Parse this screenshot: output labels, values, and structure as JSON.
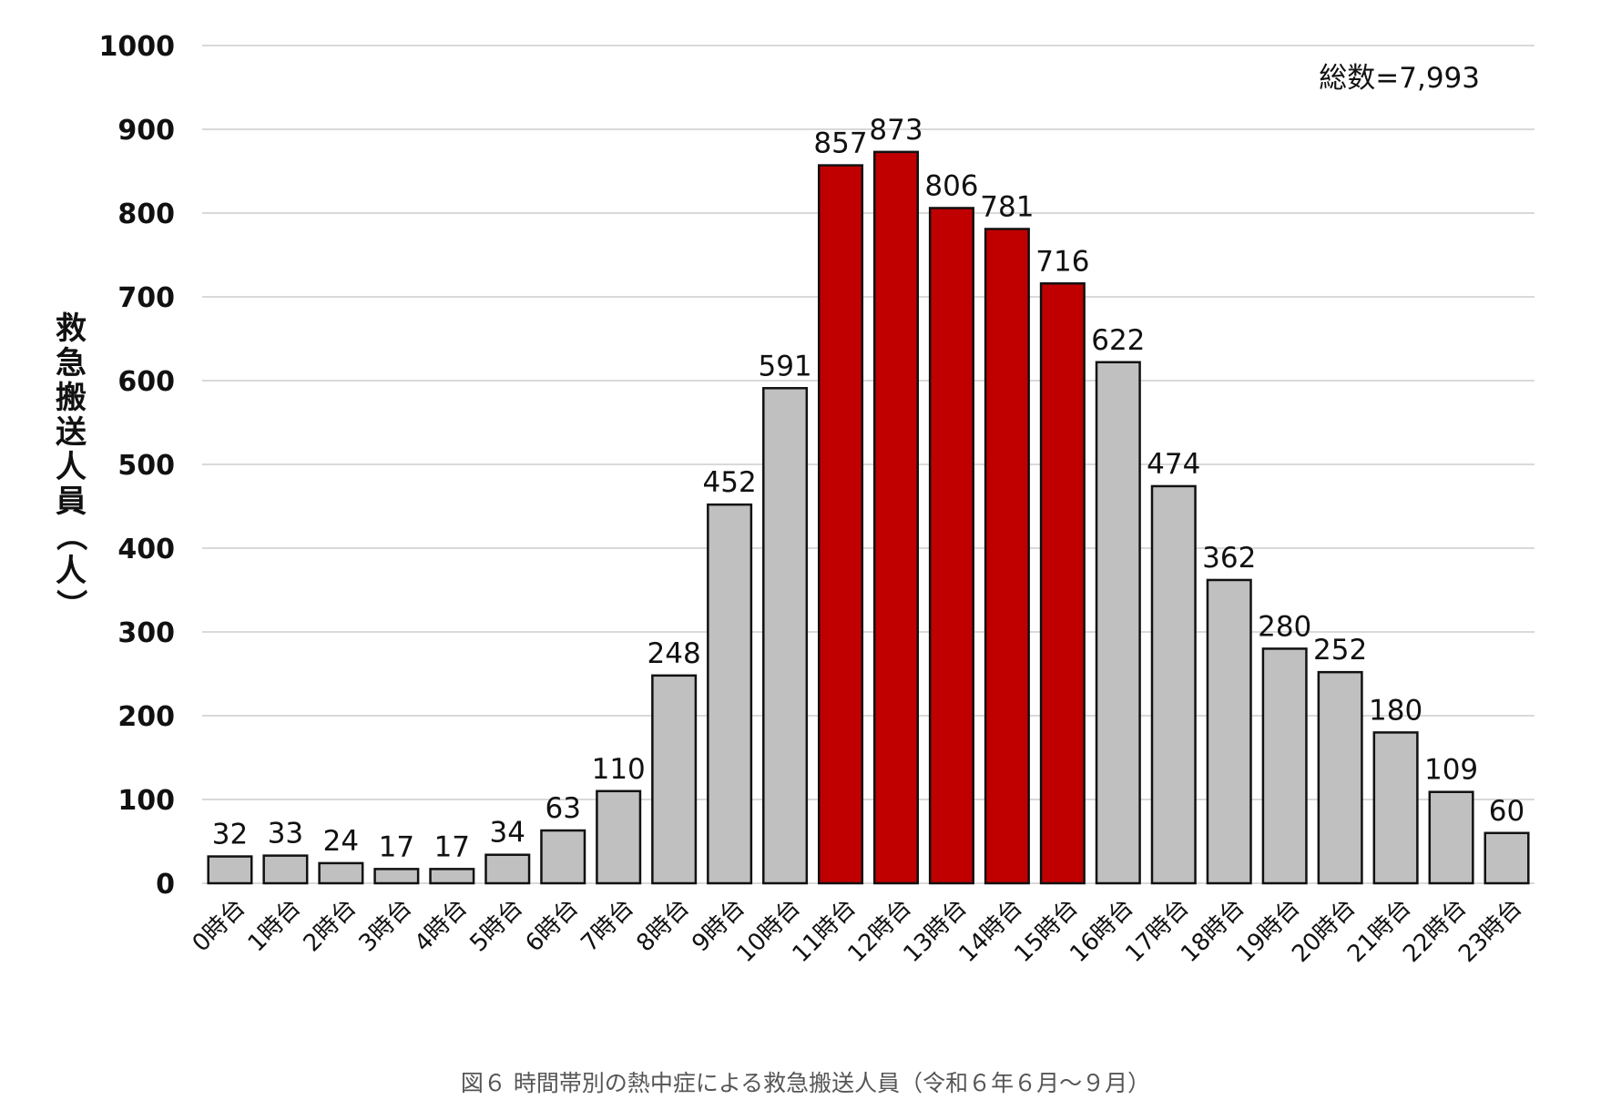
{
  "chart_data": {
    "type": "bar",
    "categories": [
      "0時台",
      "1時台",
      "2時台",
      "3時台",
      "4時台",
      "5時台",
      "6時台",
      "7時台",
      "8時台",
      "9時台",
      "10時台",
      "11時台",
      "12時台",
      "13時台",
      "14時台",
      "15時台",
      "16時台",
      "17時台",
      "18時台",
      "19時台",
      "20時台",
      "21時台",
      "22時台",
      "23時台"
    ],
    "values": [
      32,
      33,
      24,
      17,
      17,
      34,
      63,
      110,
      248,
      452,
      591,
      857,
      873,
      806,
      781,
      716,
      622,
      474,
      362,
      280,
      252,
      180,
      109,
      60
    ],
    "highlighted": [
      false,
      false,
      false,
      false,
      false,
      false,
      false,
      false,
      false,
      false,
      false,
      true,
      true,
      true,
      true,
      true,
      false,
      false,
      false,
      false,
      false,
      false,
      false,
      false
    ],
    "ylabel": "救急搬送人員（人）",
    "ylim": [
      0,
      1000
    ],
    "yticks": [
      0,
      100,
      200,
      300,
      400,
      500,
      600,
      700,
      800,
      900,
      1000
    ],
    "grid": true,
    "annotation": "総数=7,993",
    "colors": {
      "bar": "#c0c0c0",
      "highlight": "#c00000",
      "grid": "#d9d9d9"
    }
  },
  "caption": "図６ 時間帯別の熱中症による救急搬送人員（令和６年６月〜９月）"
}
